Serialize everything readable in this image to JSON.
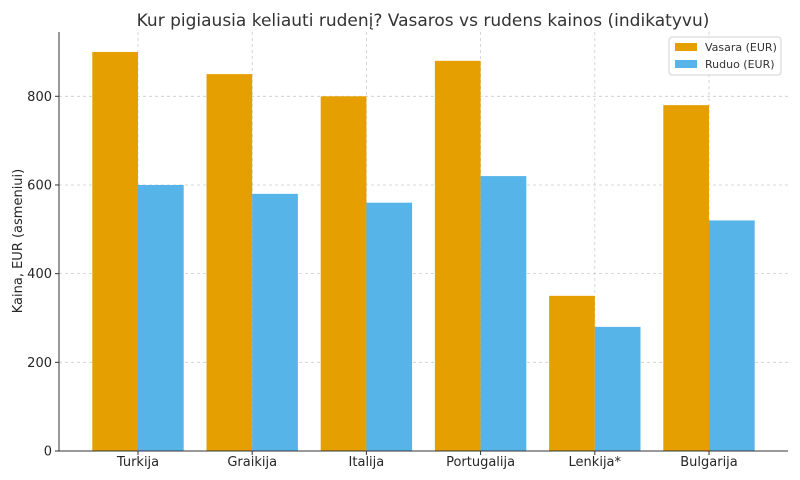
{
  "chart_data": {
    "type": "bar",
    "title": "Kur pigiausia keliauti rudenį? Vasaros vs rudens kainos (indikatyvu)",
    "xlabel": "",
    "ylabel": "Kaina, EUR (asmeniui)",
    "categories": [
      "Turkija",
      "Graikija",
      "Italija",
      "Portugalija",
      "Lenkija*",
      "Bulgarija"
    ],
    "series": [
      {
        "name": "Vasara (EUR)",
        "color": "#E69F00",
        "values": [
          900,
          850,
          800,
          880,
          350,
          780
        ]
      },
      {
        "name": "Ruduo (EUR)",
        "color": "#56B4E9",
        "values": [
          600,
          580,
          560,
          620,
          280,
          520
        ]
      }
    ],
    "ylim": [
      0,
      945
    ],
    "yticks": [
      0,
      200,
      400,
      600,
      800
    ],
    "grid": true,
    "legend_position": "top-right"
  }
}
